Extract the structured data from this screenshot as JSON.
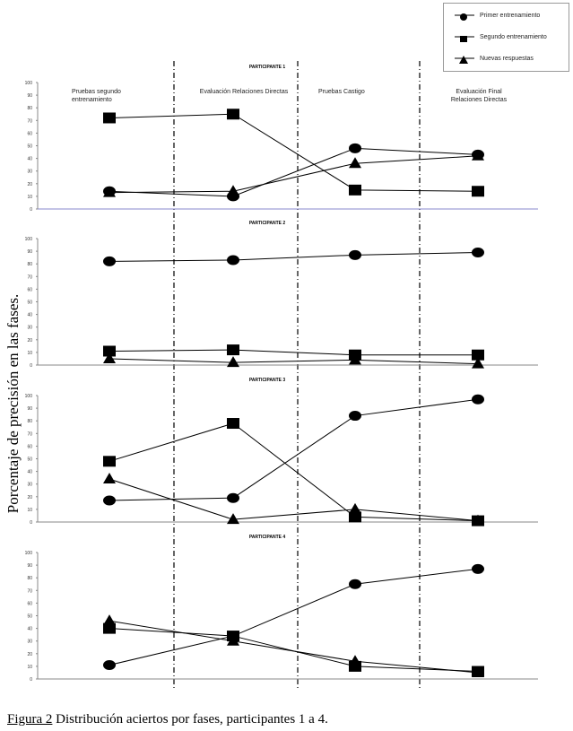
{
  "chart_data": {
    "type": "line",
    "caption_label": "Figura 2",
    "caption_text": " Distribución aciertos por fases, participantes 1 a 4.",
    "ylabel": "Porcentaje de precisión en las fases.",
    "ylim": [
      0,
      100
    ],
    "yticks": [
      0,
      10,
      20,
      30,
      40,
      50,
      60,
      70,
      80,
      90,
      100
    ],
    "phases": [
      "Pruebas segundo entrenamiento",
      "Evaluación Relaciones Directas",
      "Pruebas Castigo",
      "Evaluación Final Relaciones Directas"
    ],
    "legend": [
      {
        "name": "Primer entrenamiento",
        "marker": "circle"
      },
      {
        "name": "Segundo entrenamiento",
        "marker": "square"
      },
      {
        "name": "Nuevas respuestas",
        "marker": "triangle"
      }
    ],
    "panels": [
      {
        "title": "PARTICIPANTE 1",
        "series": [
          {
            "name": "Primer entrenamiento",
            "values": [
              14,
              10,
              48,
              43
            ]
          },
          {
            "name": "Segundo entrenamiento",
            "values": [
              72,
              75,
              15,
              14
            ]
          },
          {
            "name": "Nuevas respuestas",
            "values": [
              13,
              14,
              36,
              42
            ]
          }
        ]
      },
      {
        "title": "PARTICIPANTE 2",
        "series": [
          {
            "name": "Primer entrenamiento",
            "values": [
              82,
              83,
              87,
              89
            ]
          },
          {
            "name": "Segundo entrenamiento",
            "values": [
              11,
              12,
              8,
              8
            ]
          },
          {
            "name": "Nuevas respuestas",
            "values": [
              5,
              2,
              4,
              1
            ]
          }
        ]
      },
      {
        "title": "PARTICIPANTE 3",
        "series": [
          {
            "name": "Primer entrenamiento",
            "values": [
              17,
              19,
              84,
              97
            ]
          },
          {
            "name": "Segundo entrenamiento",
            "values": [
              48,
              78,
              4,
              1
            ]
          },
          {
            "name": "Nuevas respuestas",
            "values": [
              34,
              2,
              10,
              1
            ]
          }
        ]
      },
      {
        "title": "PARTICIPANTE 4",
        "series": [
          {
            "name": "Primer entrenamiento",
            "values": [
              11,
              34,
              75,
              87
            ]
          },
          {
            "name": "Segundo entrenamiento",
            "values": [
              40,
              34,
              10,
              6
            ]
          },
          {
            "name": "Nuevas respuestas",
            "values": [
              46,
              30,
              14,
              5
            ]
          }
        ]
      }
    ]
  }
}
